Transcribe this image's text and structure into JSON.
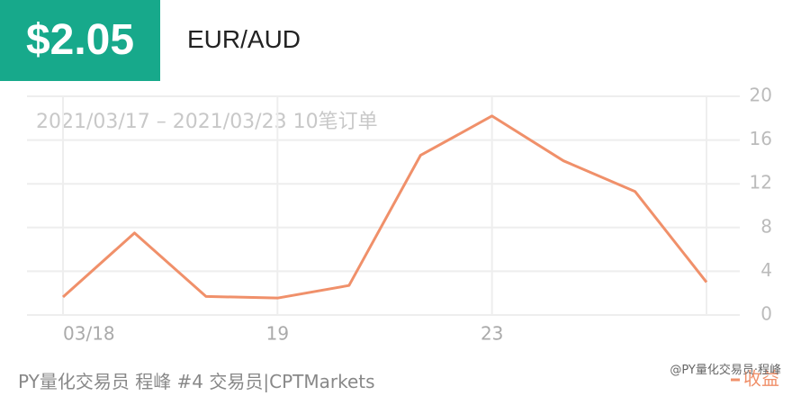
{
  "header": {
    "price": "$2.05",
    "pair": "EUR/AUD"
  },
  "chart_data": {
    "type": "line",
    "subtitle": "2021/03/17 – 2021/03/23 10笔订单",
    "categories": [
      "03/18",
      null,
      null,
      "19",
      null,
      null,
      "23",
      null,
      null,
      null
    ],
    "series": [
      {
        "name": "收益",
        "color": "#f0906a",
        "values": [
          1.65,
          7.5,
          1.7,
          1.55,
          2.7,
          14.6,
          18.2,
          14.1,
          11.3,
          3.0
        ]
      }
    ],
    "ylim": [
      0,
      20
    ],
    "yticks": [
      0,
      4,
      8,
      12,
      16,
      20
    ],
    "grid": true
  },
  "footer": {
    "text": "PY量化交易员 程峰 #4 交易员|CPTMarkets",
    "watermark": "@PY量化交易员·程峰"
  }
}
